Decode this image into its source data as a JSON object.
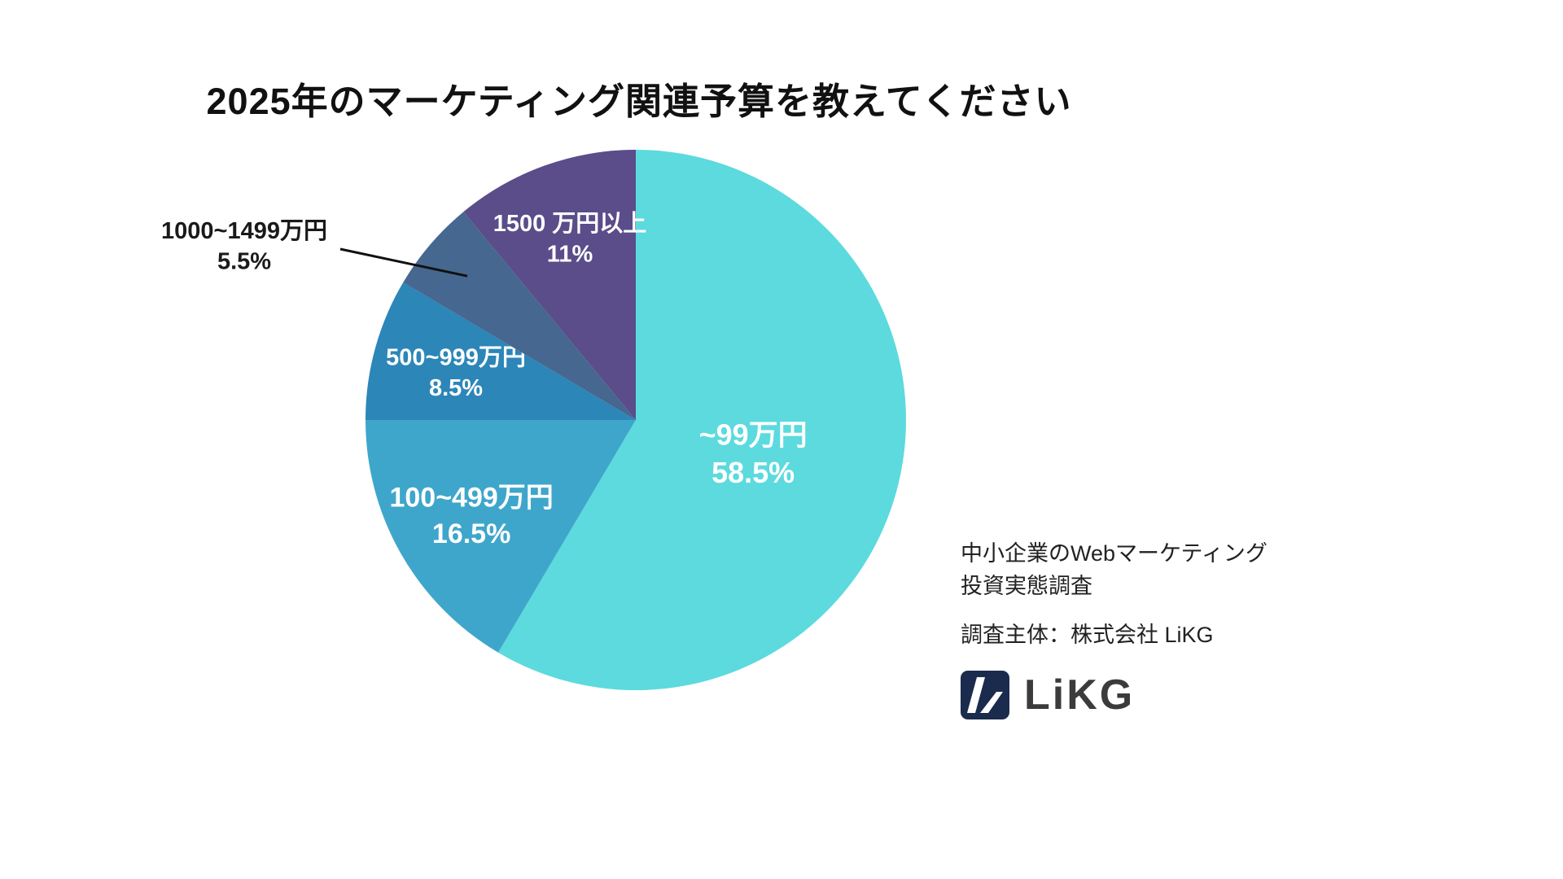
{
  "title": "2025年のマーケティング関連予算を教えてください",
  "chart_data": {
    "type": "pie",
    "title": "2025年のマーケティング関連予算を教えてください",
    "start_angle_deg": 0,
    "direction": "clockwise",
    "unit": "%",
    "slices": [
      {
        "label": "~99万円",
        "value": 58.5,
        "color": "#5cdade",
        "label_color": "#ffffff",
        "label_position": "inside"
      },
      {
        "label": "100~499万円",
        "value": 16.5,
        "color": "#3fa6cb",
        "label_color": "#ffffff",
        "label_position": "inside"
      },
      {
        "label": "500~999万円",
        "value": 8.5,
        "color": "#2c86b8",
        "label_color": "#ffffff",
        "label_position": "inside"
      },
      {
        "label": "1000~1499万円",
        "value": 5.5,
        "color": "#46678f",
        "label_color": "#1a1a1a",
        "label_position": "outside"
      },
      {
        "label": "1500 万円以上",
        "value": 11,
        "color": "#5a4d8a",
        "label_color": "#ffffff",
        "label_position": "inside"
      }
    ],
    "legend": "none",
    "leader_line_color": "#111111"
  },
  "footer": {
    "source_line1": "中小企業のWebマーケティング",
    "source_line2": "投資実態調査",
    "credit": "調査主体：株式会社 LiKG",
    "logo_text": "LiKG"
  },
  "colors": {
    "background": "#ffffff",
    "title": "#111111",
    "logo_square": "#1b2b4d"
  }
}
